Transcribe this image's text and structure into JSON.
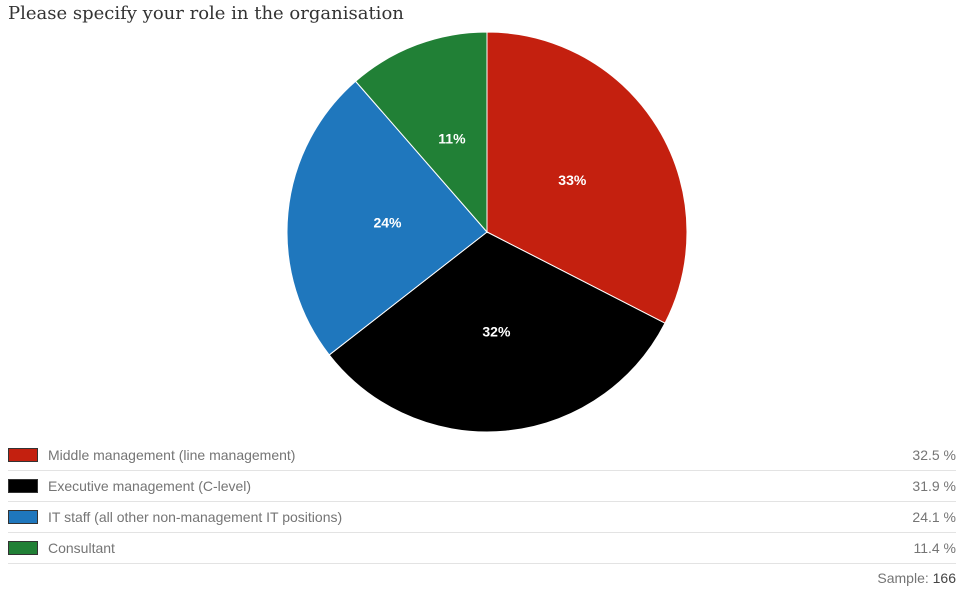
{
  "title": "Please specify your role in the organisation",
  "chart_data": {
    "type": "pie",
    "title": "Please specify your role in the organisation",
    "series": [
      {
        "name": "Middle management (line management)",
        "value": 32.5,
        "value_label": "32.5 %",
        "slice_label": "33%",
        "color": "#c4200f"
      },
      {
        "name": "Executive management (C-level)",
        "value": 31.9,
        "value_label": "31.9 %",
        "slice_label": "32%",
        "color": "#000000"
      },
      {
        "name": "IT staff (all other non-management IT positions)",
        "value": 24.1,
        "value_label": "24.1 %",
        "slice_label": "24%",
        "color": "#1f77bd"
      },
      {
        "name": "Consultant",
        "value": 11.4,
        "value_label": "11.4 %",
        "slice_label": "11%",
        "color": "#218036"
      }
    ]
  },
  "sample": {
    "label": "Sample:",
    "value": "166"
  }
}
